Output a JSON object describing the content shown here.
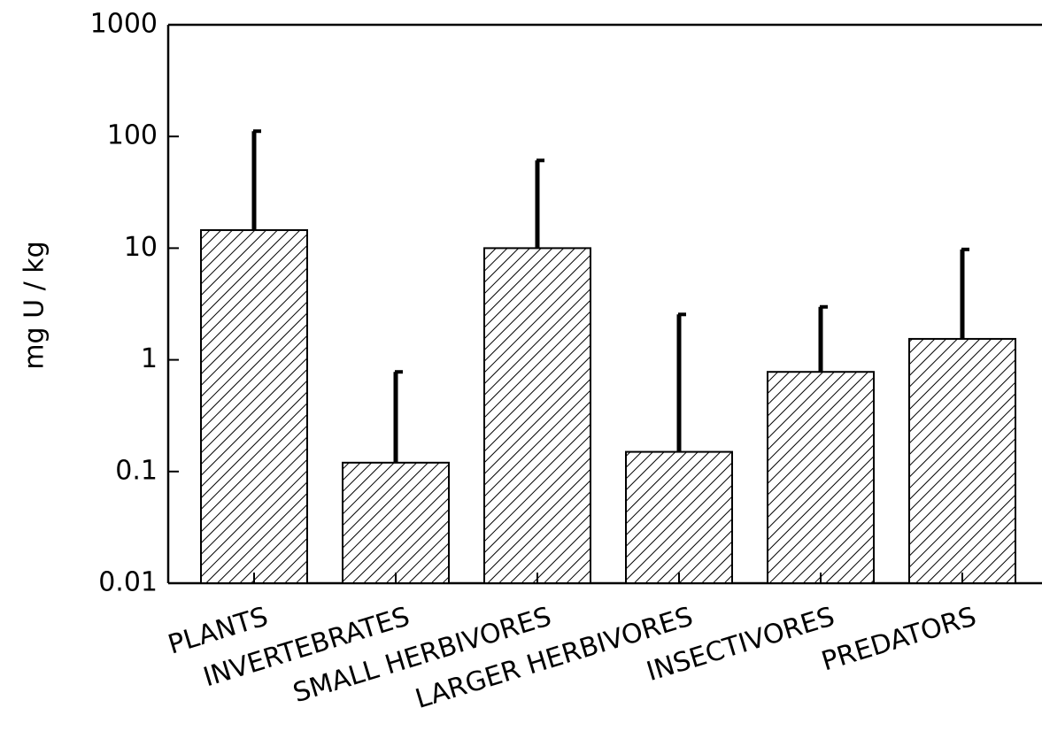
{
  "chart_data": {
    "type": "bar",
    "y_label": "mg U / kg",
    "categories": [
      "PLANTS",
      "INVERTEBRATES",
      "SMALL HERBIVORES",
      "LARGER HERBIVORES",
      "INSECTIVORES",
      "PREDATORS"
    ],
    "values": [
      14.5,
      0.12,
      10,
      0.15,
      0.78,
      1.54
    ],
    "errors": [
      97,
      0.66,
      51,
      2.4,
      2.2,
      8.2
    ],
    "color": "#000000",
    "log_scale": true,
    "ylim": [
      0.01,
      1000
    ],
    "yticks": [
      0.01,
      0.1,
      1,
      10,
      100,
      1000
    ]
  }
}
